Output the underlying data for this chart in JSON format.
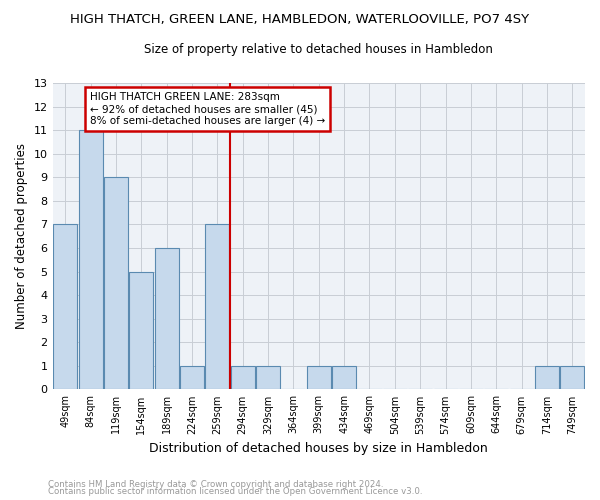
{
  "title": "HIGH THATCH, GREEN LANE, HAMBLEDON, WATERLOOVILLE, PO7 4SY",
  "subtitle": "Size of property relative to detached houses in Hambledon",
  "xlabel": "Distribution of detached houses by size in Hambledon",
  "ylabel": "Number of detached properties",
  "footnote1": "Contains HM Land Registry data © Crown copyright and database right 2024.",
  "footnote2": "Contains public sector information licensed under the Open Government Licence v3.0.",
  "bar_labels": [
    "49sqm",
    "84sqm",
    "119sqm",
    "154sqm",
    "189sqm",
    "224sqm",
    "259sqm",
    "294sqm",
    "329sqm",
    "364sqm",
    "399sqm",
    "434sqm",
    "469sqm",
    "504sqm",
    "539sqm",
    "574sqm",
    "609sqm",
    "644sqm",
    "679sqm",
    "714sqm",
    "749sqm"
  ],
  "values": [
    7,
    11,
    9,
    5,
    6,
    1,
    7,
    1,
    1,
    0,
    1,
    1,
    0,
    0,
    0,
    0,
    0,
    0,
    0,
    1,
    1
  ],
  "bar_color": "#c6d9ec",
  "bar_edge_color": "#5a8ab0",
  "vline_x": 6.5,
  "vline_color": "#cc0000",
  "annotation_title": "HIGH THATCH GREEN LANE: 283sqm",
  "annotation_line1": "← 92% of detached houses are smaller (45)",
  "annotation_line2": "8% of semi-detached houses are larger (4) →",
  "annotation_box_color": "#cc0000",
  "ylim": [
    0,
    13
  ],
  "yticks": [
    0,
    1,
    2,
    3,
    4,
    5,
    6,
    7,
    8,
    9,
    10,
    11,
    12,
    13
  ],
  "grid_color": "#c8cdd4",
  "bg_color": "#eef2f7",
  "title_fontsize": 9.5,
  "subtitle_fontsize": 8.5
}
